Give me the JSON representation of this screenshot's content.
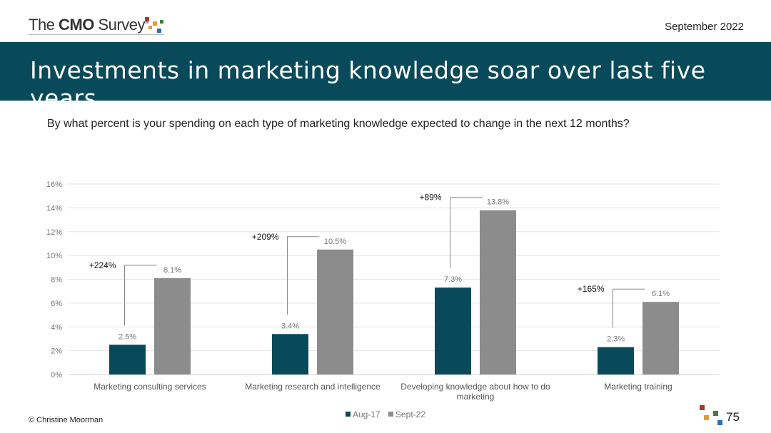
{
  "header": {
    "logo_the": "The ",
    "logo_cmo": "CMO",
    "logo_survey": " Survey",
    "logo_reg": "®",
    "date": "September 2022"
  },
  "banner": {
    "title": "Investments in marketing knowledge soar over last five years"
  },
  "question": "By what percent is your spending on each type of marketing knowledge expected to change in the next 12 months?",
  "footer": {
    "copyright": "© Christine Moorman",
    "page_number": "75"
  },
  "colors": {
    "banner": "#084a5a",
    "aug17": "#084a5a",
    "sept22": "#8c8c8c"
  },
  "chart_data": {
    "type": "bar",
    "categories": [
      [
        "Marketing consulting services"
      ],
      [
        "Marketing research and intelligence"
      ],
      [
        "Developing knowledge about how to do",
        "marketing"
      ],
      [
        "Marketing training"
      ]
    ],
    "series": [
      {
        "name": "Aug-17",
        "values": [
          2.5,
          3.4,
          7.3,
          2.3
        ],
        "labels": [
          "2.5%",
          "3.4%",
          "7.3%",
          "2.3%"
        ]
      },
      {
        "name": "Sept-22",
        "values": [
          8.1,
          10.5,
          13.8,
          6.1
        ],
        "labels": [
          "8.1%",
          "10.5%",
          "13.8%",
          "6.1%"
        ]
      }
    ],
    "annotations": [
      "+224%",
      "+209%",
      "+89%",
      "+165%"
    ],
    "yticks": [
      "0%",
      "2%",
      "4%",
      "6%",
      "8%",
      "10%",
      "12%",
      "14%",
      "16%"
    ],
    "ylim": [
      0,
      16
    ],
    "grid": true,
    "legend": "bottom-center"
  }
}
